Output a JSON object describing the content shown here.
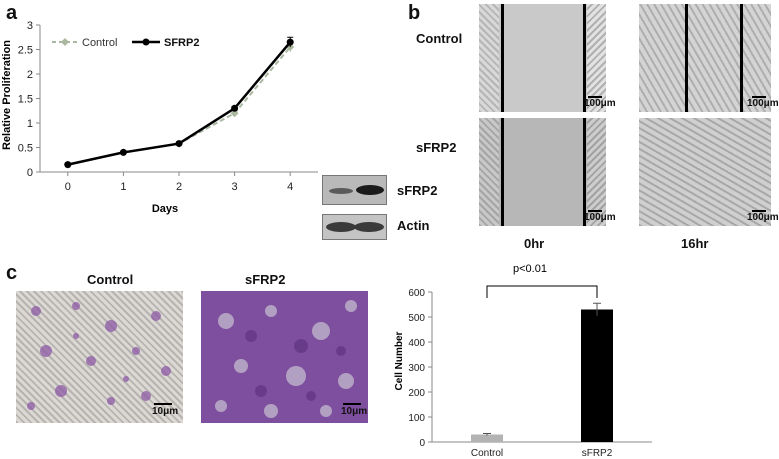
{
  "panels": {
    "a": "a",
    "b": "b",
    "c": "c"
  },
  "chart_data": [
    {
      "type": "line",
      "panel": "a",
      "x": [
        0,
        1,
        2,
        3,
        4
      ],
      "series": [
        {
          "name": "Control",
          "values": [
            0.15,
            0.4,
            0.58,
            1.2,
            2.55
          ],
          "error": [
            0.02,
            0.03,
            0.03,
            0.05,
            0.1
          ],
          "color": "#aab8a0"
        },
        {
          "name": "SFRP2",
          "values": [
            0.15,
            0.4,
            0.58,
            1.3,
            2.65
          ],
          "error": [
            0.02,
            0.03,
            0.03,
            0.04,
            0.1
          ],
          "color": "#000000"
        }
      ],
      "xlabel": "Days",
      "ylabel": "Relative Proliferation",
      "ylim": [
        0,
        3
      ],
      "yticks": [
        "0",
        "0.5",
        "1",
        "1.5",
        "2",
        "2.5",
        "3"
      ],
      "xticks": [
        "0",
        "1",
        "2",
        "3",
        "4"
      ],
      "legend": "top-left"
    },
    {
      "type": "bar",
      "panel": "c",
      "categories": [
        "Control",
        "sFRP2"
      ],
      "values": [
        30,
        530
      ],
      "error": [
        4,
        25
      ],
      "colors": [
        "#b3b3b3",
        "#000000"
      ],
      "ylabel": "Cell Number",
      "ylim": [
        0,
        600
      ],
      "yticks": [
        "0",
        "100",
        "200",
        "300",
        "400",
        "500",
        "600"
      ],
      "annotation": "p<0.01"
    }
  ],
  "western": {
    "labels": [
      "sFRP2",
      "Actin"
    ]
  },
  "wound": {
    "rows": [
      "Control",
      "sFRP2"
    ],
    "cols": [
      "0hr",
      "16hr"
    ],
    "scale": "100μm"
  },
  "invasion": {
    "cols": [
      "Control",
      "sFRP2"
    ],
    "scale": "10μm"
  }
}
